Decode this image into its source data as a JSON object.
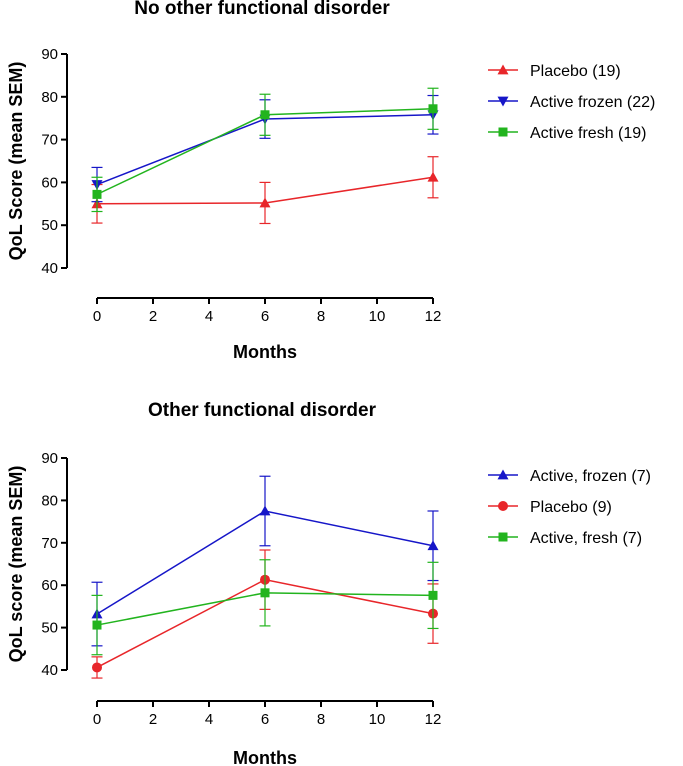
{
  "chart_data": [
    {
      "type": "line",
      "title": "No other functional disorder",
      "xlabel": "Months",
      "ylabel": "QoL Score (mean SEM)",
      "xlim": [
        0,
        12
      ],
      "ylim": [
        40,
        90
      ],
      "xticks": [
        "0",
        "2",
        "4",
        "6",
        "8",
        "10",
        "12"
      ],
      "yticks": [
        "40",
        "50",
        "60",
        "70",
        "80",
        "90"
      ],
      "legend_position": "right",
      "series": [
        {
          "name": "Placebo (19)",
          "color": "#e8262a",
          "marker": "triangle-up",
          "x": [
            0,
            6,
            12
          ],
          "values": [
            55,
            55.2,
            61.2
          ],
          "error": [
            4.5,
            4.8,
            4.8
          ]
        },
        {
          "name": "Active frozen (22)",
          "color": "#1616c8",
          "marker": "triangle-down",
          "x": [
            0,
            6,
            12
          ],
          "values": [
            59.5,
            74.8,
            75.8
          ],
          "error": [
            4,
            4.5,
            4.5
          ]
        },
        {
          "name": "Active fresh (19)",
          "color": "#22b41e",
          "marker": "square",
          "x": [
            0,
            6,
            12
          ],
          "values": [
            57.2,
            75.8,
            77.2
          ],
          "error": [
            4,
            4.8,
            4.8
          ]
        }
      ]
    },
    {
      "type": "line",
      "title": "Other functional disorder",
      "xlabel": "Months",
      "ylabel": "QoL score (mean SEM)",
      "xlim": [
        0,
        12
      ],
      "ylim": [
        40,
        90
      ],
      "xticks": [
        "0",
        "2",
        "4",
        "6",
        "8",
        "10",
        "12"
      ],
      "yticks": [
        "40",
        "50",
        "60",
        "70",
        "80",
        "90"
      ],
      "legend_position": "right",
      "series": [
        {
          "name": "Active, frozen (7)",
          "color": "#1616c8",
          "marker": "triangle-up",
          "x": [
            0,
            6,
            12
          ],
          "values": [
            53.2,
            77.5,
            69.3
          ],
          "error": [
            7.5,
            8.2,
            8.2
          ]
        },
        {
          "name": "Placebo (9)",
          "color": "#e8262a",
          "marker": "circle",
          "x": [
            0,
            6,
            12
          ],
          "values": [
            40.6,
            61.3,
            53.3
          ],
          "error": [
            2.5,
            7,
            7
          ]
        },
        {
          "name": "Active, fresh (7)",
          "color": "#22b41e",
          "marker": "square",
          "x": [
            0,
            6,
            12
          ],
          "values": [
            50.6,
            58.2,
            57.6
          ],
          "error": [
            7,
            7.8,
            7.8
          ]
        }
      ]
    }
  ]
}
